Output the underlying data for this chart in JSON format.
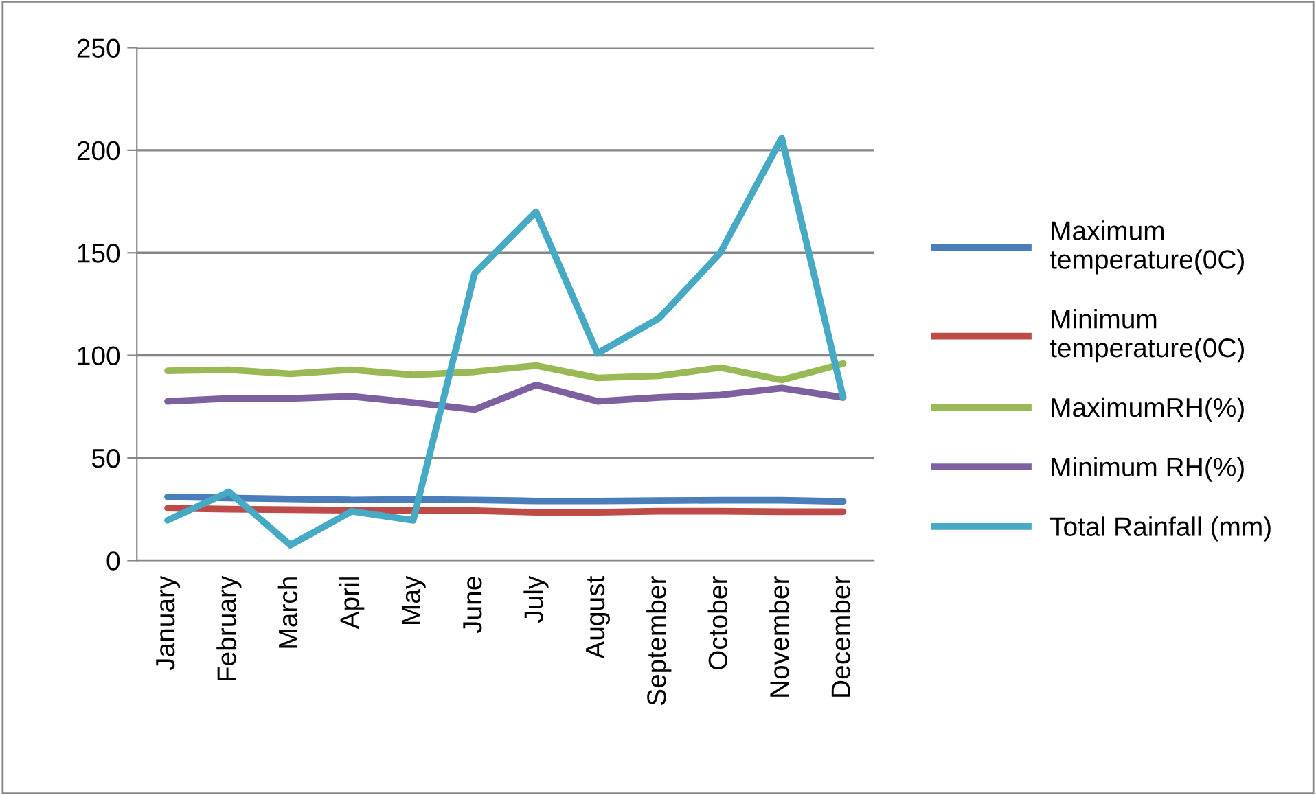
{
  "chart_data": {
    "type": "line",
    "categories": [
      "January",
      "February",
      "March",
      "April",
      "May",
      "June",
      "July",
      "August",
      "September",
      "October",
      "November",
      "December"
    ],
    "series": [
      {
        "name": "Maximum temperature(0C)",
        "color": "#4a7ebb",
        "values": [
          31,
          30.5,
          30,
          29.5,
          29.8,
          29.5,
          29,
          29,
          29.2,
          29.4,
          29.4,
          28.8
        ]
      },
      {
        "name": "Minimum temperature(0C)",
        "color": "#be4b48",
        "values": [
          25.5,
          25,
          24.8,
          24.5,
          24.4,
          24.3,
          23.5,
          23.5,
          24,
          24,
          23.8,
          23.8
        ]
      },
      {
        "name": "MaximumRH(%)",
        "color": "#98b954",
        "values": [
          92.5,
          93,
          91,
          93,
          90.5,
          92,
          95,
          89,
          90,
          94,
          88,
          96
        ]
      },
      {
        "name": "Minimum RH(%)",
        "color": "#7d60a0",
        "values": [
          77.6,
          79,
          79,
          80,
          77,
          73.6,
          85.6,
          77.6,
          79.5,
          80.7,
          84,
          79.5
        ]
      },
      {
        "name": "Total Rainfall (mm)",
        "color": "#46aac5",
        "values": [
          19.6,
          33.5,
          7.5,
          24,
          19.6,
          140,
          170,
          101,
          118,
          150,
          206,
          79.5
        ]
      }
    ],
    "ylim": [
      0,
      250
    ],
    "yticks": [
      0,
      50,
      100,
      150,
      200,
      250
    ],
    "grid": "y",
    "legend": "right"
  }
}
